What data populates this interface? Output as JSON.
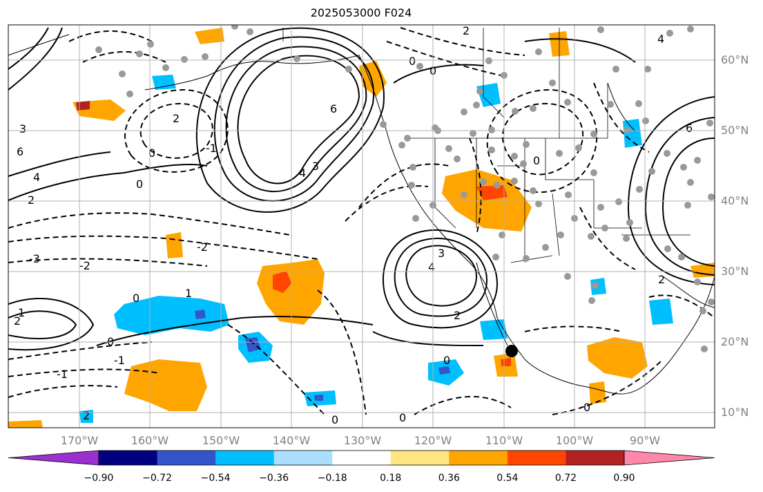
{
  "title": "2025053000 F024",
  "lat_labels": [
    "60°N",
    "50°N",
    "40°N",
    "30°N",
    "20°N",
    "10°N"
  ],
  "lon_labels": [
    "170°W",
    "160°W",
    "150°W",
    "140°W",
    "130°W",
    "120°W",
    "110°W",
    "100°W",
    "90°W"
  ],
  "contour_labels": [
    "0",
    "-1",
    "-2",
    "-3",
    "1",
    "2",
    "3",
    "4",
    "6"
  ],
  "colorbar": {
    "ticks": [
      "−0.90",
      "−0.72",
      "−0.54",
      "−0.36",
      "−0.18",
      "0.18",
      "0.36",
      "0.54",
      "0.72",
      "0.90"
    ],
    "colors": [
      "#9b30d0",
      "#000080",
      "#3355cc",
      "#00bfff",
      "#aadfff",
      "#ffffff",
      "#ffe680",
      "#ffa500",
      "#ff4500",
      "#b22222",
      "#ff88aa",
      "#ff88aa"
    ]
  }
}
